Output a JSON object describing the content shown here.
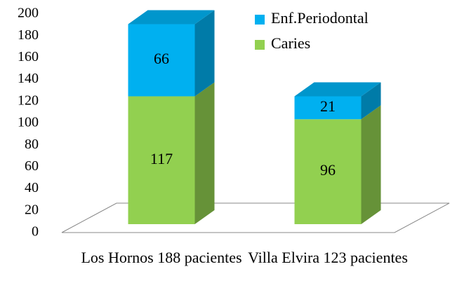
{
  "chart_data": {
    "type": "bar",
    "stacked": true,
    "categories": [
      "Los Hornos 188 pacientes",
      "Villa Elvira 123 pacientes"
    ],
    "series": [
      {
        "name": "Caries",
        "color": "#92d050",
        "values": [
          117,
          96
        ]
      },
      {
        "name": "Enf.Periodontal",
        "color": "#00b0f0",
        "values": [
          66,
          21
        ]
      }
    ],
    "ylim": [
      0,
      200
    ],
    "yticks": [
      0,
      20,
      40,
      60,
      80,
      100,
      120,
      140,
      160,
      180,
      200
    ],
    "grid": false,
    "legend": "upper right"
  }
}
